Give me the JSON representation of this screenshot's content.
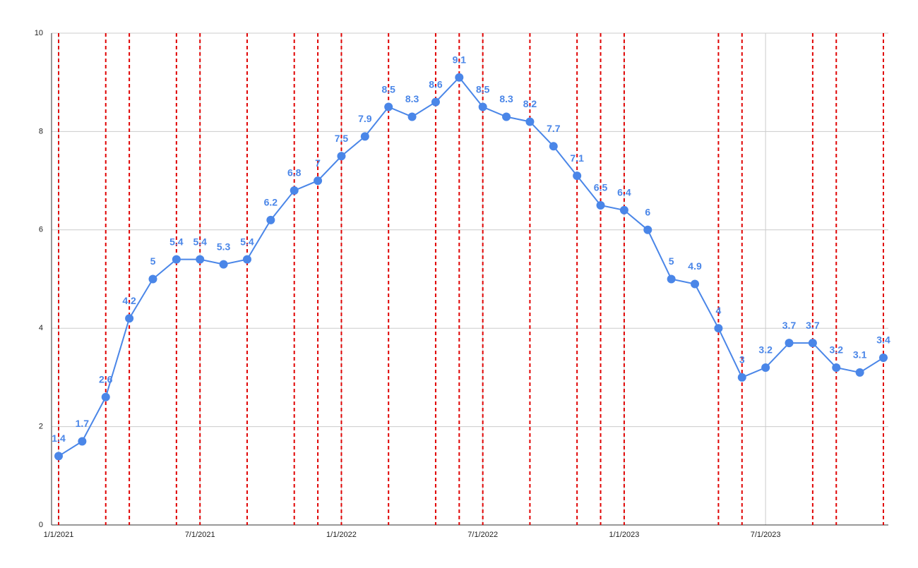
{
  "chart_data": {
    "type": "line",
    "x": [
      "2021-01",
      "2021-02",
      "2021-03",
      "2021-04",
      "2021-05",
      "2021-06",
      "2021-07",
      "2021-08",
      "2021-09",
      "2021-10",
      "2021-11",
      "2021-12",
      "2022-01",
      "2022-02",
      "2022-03",
      "2022-04",
      "2022-05",
      "2022-06",
      "2022-07",
      "2022-08",
      "2022-09",
      "2022-10",
      "2022-11",
      "2022-12",
      "2023-01",
      "2023-02",
      "2023-03",
      "2023-04",
      "2023-05",
      "2023-06",
      "2023-07",
      "2023-08",
      "2023-09",
      "2023-10",
      "2023-11",
      "2023-12"
    ],
    "series": [
      {
        "color": "#4a86e8",
        "values": [
          1.4,
          1.7,
          2.6,
          4.2,
          5,
          5.4,
          5.4,
          5.3,
          5.4,
          6.2,
          6.8,
          7,
          7.5,
          7.9,
          8.5,
          8.3,
          8.6,
          9.1,
          8.5,
          8.3,
          8.2,
          7.7,
          7.1,
          6.5,
          6.4,
          6,
          5,
          4.9,
          4,
          3,
          3.2,
          3.7,
          3.7,
          3.2,
          3.1,
          3.4
        ]
      }
    ],
    "xlim": [
      "2021-01",
      "2023-12"
    ],
    "xticks": [
      {
        "value": "2021-01",
        "label": "1/1/2021"
      },
      {
        "value": "2021-07",
        "label": "7/1/2021"
      },
      {
        "value": "2022-01",
        "label": "1/1/2022"
      },
      {
        "value": "2022-07",
        "label": "7/1/2022"
      },
      {
        "value": "2023-01",
        "label": "1/1/2023"
      },
      {
        "value": "2023-07",
        "label": "7/1/2023"
      }
    ],
    "ylim": [
      0,
      10
    ],
    "yticks": [
      0,
      2,
      4,
      6,
      8,
      10
    ],
    "grid": true,
    "vertical_lines": {
      "color": "#e00000",
      "x": [
        "2021-01",
        "2021-03",
        "2021-04",
        "2021-06",
        "2021-07",
        "2021-09",
        "2021-11",
        "2021-12",
        "2022-01",
        "2022-03",
        "2022-05",
        "2022-06",
        "2022-07",
        "2022-09",
        "2022-11",
        "2022-12",
        "2023-01",
        "2023-05",
        "2023-06",
        "2023-09",
        "2023-10",
        "2023-12"
      ]
    }
  }
}
